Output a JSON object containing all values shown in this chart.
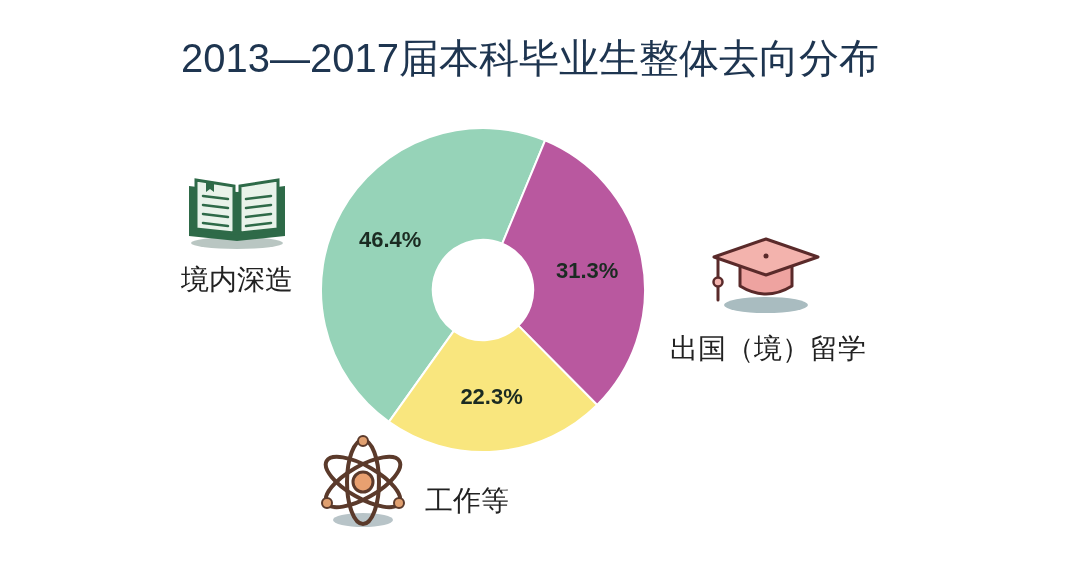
{
  "chart_data": {
    "type": "donut",
    "title": "2013—2017届本科毕业生整体去向分布",
    "categories": [
      "境内深造",
      "出国（境）留学",
      "工作等"
    ],
    "values": [
      46.4,
      31.3,
      22.3
    ],
    "colors": [
      "#96d3b8",
      "#b9589f",
      "#f9e67e"
    ],
    "value_labels": [
      "46.4%",
      "31.3%",
      "22.3%"
    ]
  }
}
